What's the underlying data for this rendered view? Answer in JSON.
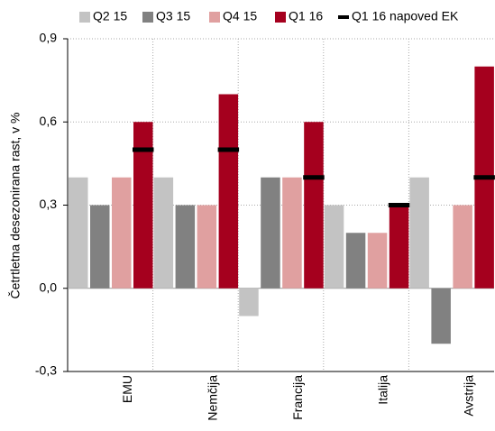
{
  "chart_data": {
    "type": "bar",
    "ylabel": "Četrtletna desezonirana rast, v %",
    "categories": [
      "EMU",
      "Nemčija",
      "Francija",
      "Italija",
      "Avstrija"
    ],
    "series": [
      {
        "name": "Q2 15",
        "color": "#c3c3c3",
        "values": [
          0.4,
          0.4,
          -0.1,
          0.3,
          0.4
        ]
      },
      {
        "name": "Q3 15",
        "color": "#818181",
        "values": [
          0.3,
          0.3,
          0.4,
          0.2,
          -0.2
        ]
      },
      {
        "name": "Q4 15",
        "color": "#e0a0a0",
        "values": [
          0.4,
          0.3,
          0.4,
          0.2,
          0.3
        ]
      },
      {
        "name": "Q1 16",
        "color": "#a5001e",
        "values": [
          0.6,
          0.7,
          0.6,
          0.3,
          0.8
        ]
      },
      {
        "name": "Q1 16 napoved EK",
        "color": "#000000",
        "marker": "dash",
        "values": [
          0.5,
          0.5,
          0.4,
          0.3,
          0.4
        ]
      }
    ],
    "ylim": [
      -0.3,
      0.9
    ],
    "yticks": [
      {
        "value": -0.3,
        "label": "-0,3"
      },
      {
        "value": 0,
        "label": "0,0"
      },
      {
        "value": 0.3,
        "label": "0,3"
      },
      {
        "value": 0.6,
        "label": "0,6"
      },
      {
        "value": 0.9,
        "label": "0,9"
      }
    ],
    "grid": true,
    "legend": "top"
  }
}
